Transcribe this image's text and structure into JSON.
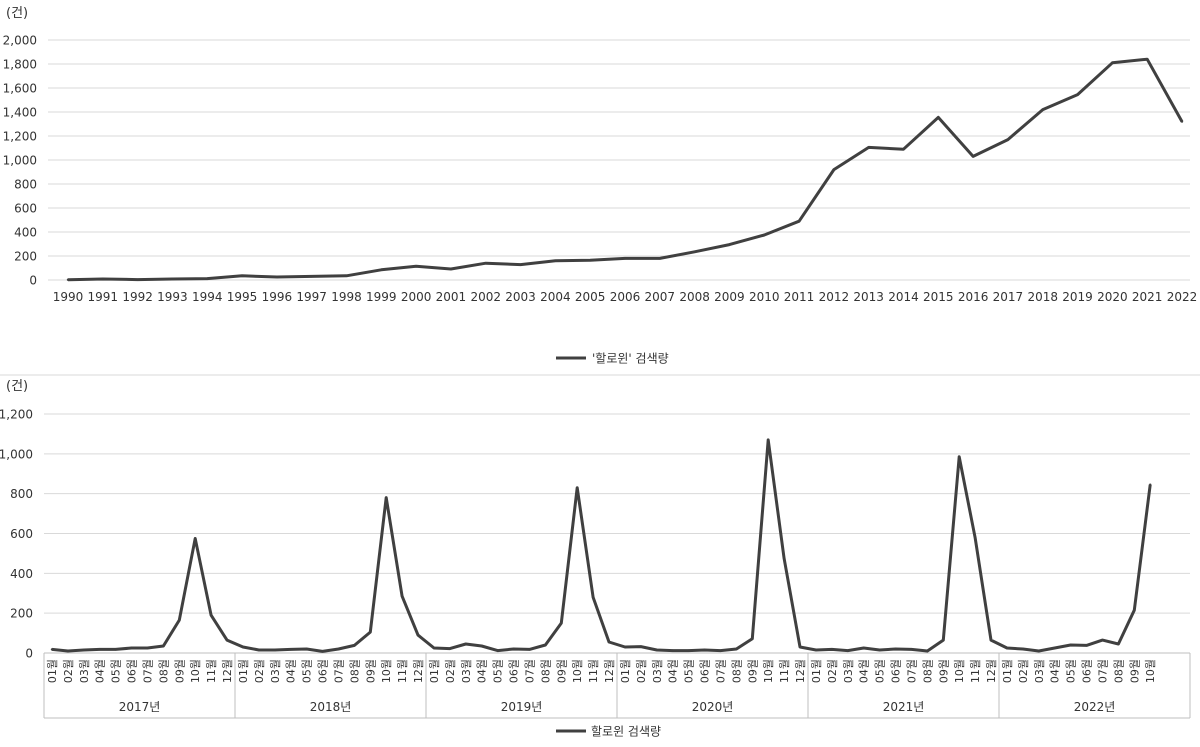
{
  "chart_data": [
    {
      "type": "line",
      "unit_label": "(건)",
      "x": [
        "1990",
        "1991",
        "1992",
        "1993",
        "1994",
        "1995",
        "1996",
        "1997",
        "1998",
        "1999",
        "2000",
        "2001",
        "2002",
        "2003",
        "2004",
        "2005",
        "2006",
        "2007",
        "2008",
        "2009",
        "2010",
        "2011",
        "2012",
        "2013",
        "2014",
        "2015",
        "2016",
        "2017",
        "2018",
        "2019",
        "2020",
        "2021",
        "2022"
      ],
      "y_ticks": [
        "0",
        "200",
        "400",
        "600",
        "800",
        "1,000",
        "1,200",
        "1,400",
        "1,600",
        "1,800",
        "2,000"
      ],
      "ylim": [
        0,
        2000
      ],
      "series": [
        {
          "name": "'할로윈' 검색량",
          "color": "#404040",
          "values": [
            2,
            8,
            3,
            8,
            12,
            35,
            25,
            30,
            35,
            85,
            115,
            92,
            140,
            128,
            160,
            165,
            180,
            180,
            235,
            295,
            375,
            490,
            920,
            1105,
            1090,
            1355,
            1030,
            1170,
            1420,
            1545,
            1810,
            1840,
            1320
          ]
        }
      ],
      "legend_position": "bottom",
      "grid": true
    },
    {
      "type": "line",
      "unit_label": "(건)",
      "months": [
        "01월",
        "02월",
        "03월",
        "04월",
        "05월",
        "06월",
        "07월",
        "08월",
        "09월",
        "10월",
        "11월",
        "12월"
      ],
      "years": [
        "2017년",
        "2018년",
        "2019년",
        "2020년",
        "2021년",
        "2022년"
      ],
      "y_ticks": [
        "0",
        "200",
        "400",
        "600",
        "800",
        "1,000",
        "1,200"
      ],
      "ylim": [
        0,
        1200
      ],
      "series": [
        {
          "name": "할로윈 검색량",
          "color": "#404040",
          "values": [
            18,
            10,
            15,
            18,
            18,
            25,
            25,
            35,
            165,
            575,
            190,
            65,
            30,
            15,
            15,
            18,
            20,
            8,
            20,
            38,
            105,
            780,
            285,
            90,
            25,
            22,
            45,
            35,
            12,
            20,
            18,
            40,
            150,
            830,
            280,
            55,
            30,
            32,
            15,
            12,
            12,
            15,
            12,
            20,
            72,
            1070,
            475,
            30,
            15,
            18,
            12,
            25,
            15,
            20,
            18,
            10,
            65,
            985,
            580,
            65,
            25,
            20,
            10,
            25,
            40,
            38,
            65,
            45,
            215,
            845
          ]
        }
      ],
      "legend_position": "bottom",
      "grid": true
    }
  ]
}
